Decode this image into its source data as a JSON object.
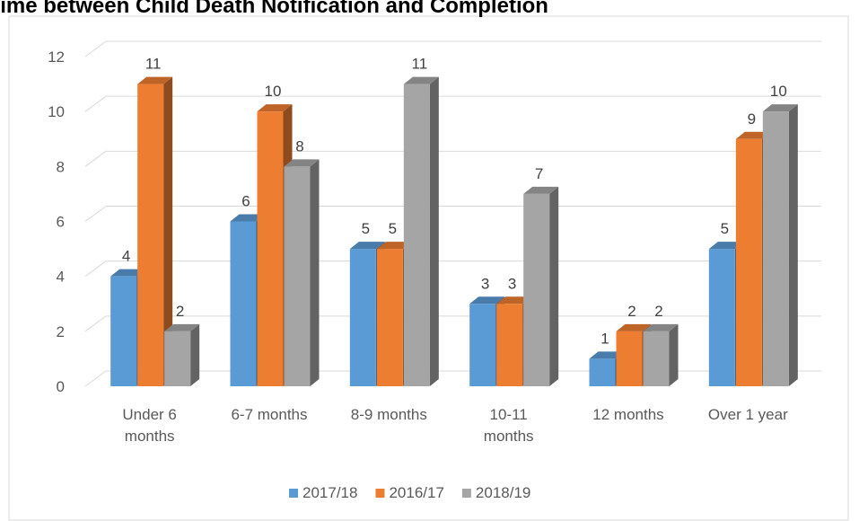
{
  "chart_data": {
    "type": "bar3d",
    "title": "Time between Child Death Notification and Completion",
    "categories": [
      "Under 6 months",
      "6-7 months",
      "8-9 months",
      "10-11 months",
      "12 months",
      "Over 1 year"
    ],
    "series": [
      {
        "name": "2017/18",
        "color": "#5b9bd5",
        "values": [
          4,
          6,
          5,
          3,
          1,
          5
        ]
      },
      {
        "name": "2016/17",
        "color": "#ed7d31",
        "values": [
          11,
          10,
          5,
          3,
          2,
          9
        ]
      },
      {
        "name": "2018/19",
        "color": "#a5a5a5",
        "values": [
          2,
          8,
          11,
          7,
          2,
          10
        ]
      }
    ],
    "ylim": [
      0,
      12
    ],
    "yticks": [
      0,
      2,
      4,
      6,
      8,
      10,
      12
    ],
    "grid": true,
    "legend": "bottom"
  }
}
